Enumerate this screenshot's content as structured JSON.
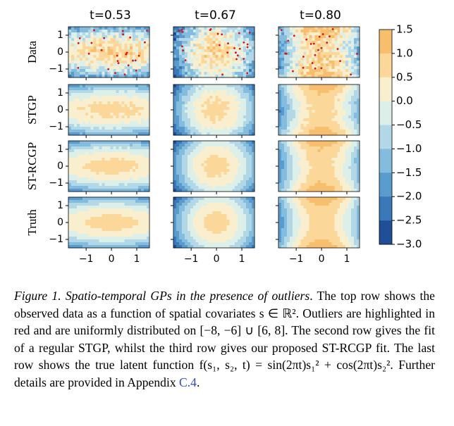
{
  "figure": {
    "columns": [
      "t=0.53",
      "t=0.67",
      "t=0.80"
    ],
    "rows": [
      "Data",
      "STGP",
      "ST-RCGP",
      "Truth"
    ],
    "xlim": [
      -1.7,
      1.5
    ],
    "ylim": [
      -1.5,
      1.5
    ],
    "xticks": [
      {
        "value": -1,
        "label": "−1"
      },
      0,
      1
    ],
    "yticks": [
      1,
      0,
      {
        "value": -1,
        "label": "−1"
      }
    ],
    "colorbar": {
      "ticks": [
        {
          "value": 1.5,
          "label": "1.5"
        },
        {
          "value": 1.0,
          "label": "1.0"
        },
        {
          "value": 0.5,
          "label": "0.5"
        },
        {
          "value": 0.0,
          "label": "0.0"
        },
        {
          "value": -0.5,
          "label": "−0.5"
        },
        {
          "value": -1.0,
          "label": "−1.0"
        },
        {
          "value": -1.5,
          "label": "−1.5"
        },
        {
          "value": -2.0,
          "label": "−2.0"
        },
        {
          "value": -2.5,
          "label": "−2.5"
        },
        {
          "value": -3.0,
          "label": "−3.0"
        }
      ],
      "colors": [
        "#f7be6e",
        "#fbd79a",
        "#f9efcf",
        "#dcefe9",
        "#b2d8e8",
        "#84bcdd",
        "#5a9bcd",
        "#3a78b8",
        "#1f4f96"
      ]
    }
  },
  "caption": {
    "label": "Figure 1.",
    "title": "Spatio-temporal GPs in the presence of outliers",
    "body": ". The top row shows the observed data as a function of spatial covariates s ∈ ℝ². Outliers are highlighted in red and are uniformly distributed on [−8, −6] ∪ [6, 8]. The second row gives the fit of a regular STGP, whilst the third row gives our proposed ST-RCGP fit. The last row shows the true latent function f(s₁, s₂, t) = sin(2πt)s₁² + cos(2πt)s₂². Further details are provided in Appendix ",
    "link": "C.4",
    "end": "."
  }
}
